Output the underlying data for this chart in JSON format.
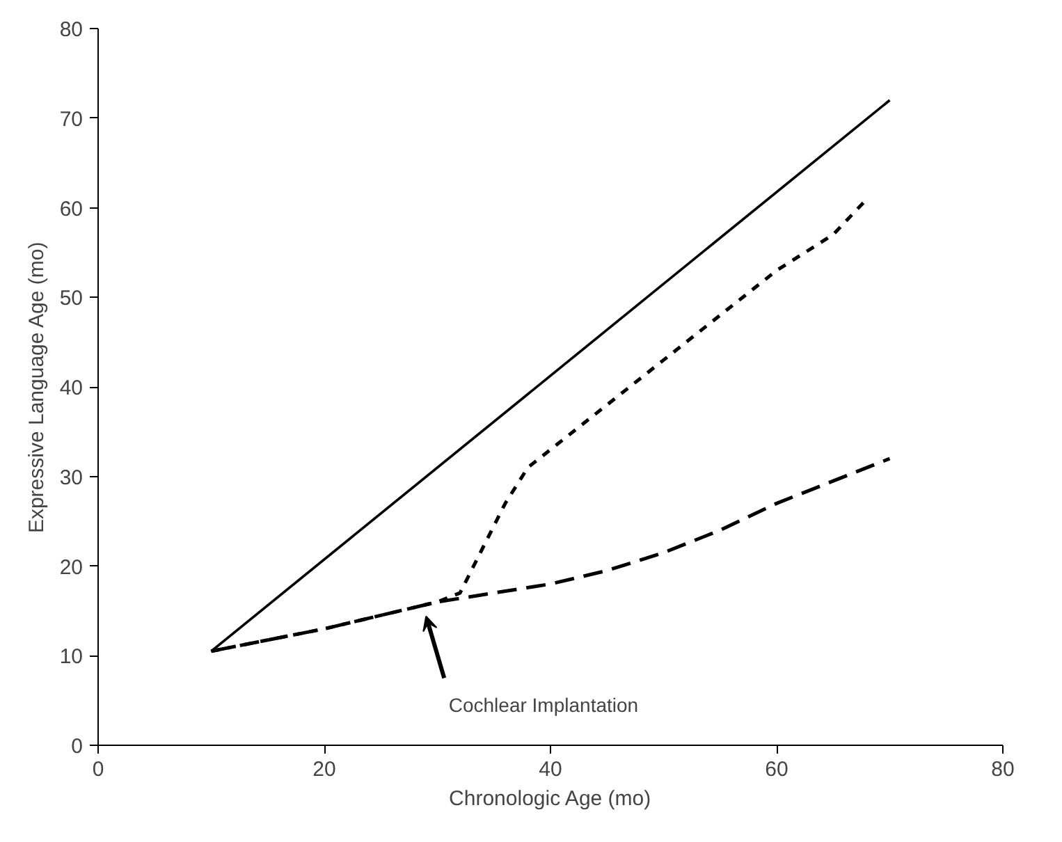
{
  "chart_data": {
    "type": "line",
    "xlabel": "Chronologic Age (mo)",
    "ylabel": "Expressive Language Age (mo)",
    "xlim": [
      0,
      80
    ],
    "ylim": [
      0,
      80
    ],
    "xticks": [
      0,
      20,
      40,
      60,
      80
    ],
    "yticks": [
      0,
      10,
      20,
      30,
      40,
      50,
      60,
      70,
      80
    ],
    "grid": false,
    "series": [
      {
        "color": "#000000",
        "line_style": "solid",
        "x": [
          10,
          70
        ],
        "values": [
          10.5,
          72
        ]
      },
      {
        "color": "#000000",
        "line_style": "dotted",
        "x": [
          10,
          20,
          30,
          32,
          34,
          36,
          38,
          40,
          45,
          50,
          55,
          60,
          65,
          68
        ],
        "values": [
          10.5,
          13,
          16,
          17,
          22,
          27,
          31,
          33,
          38,
          43,
          48,
          53,
          57,
          61
        ]
      },
      {
        "color": "#000000",
        "line_style": "dashed",
        "x": [
          10,
          20,
          30,
          40,
          45,
          50,
          55,
          60,
          65,
          70
        ],
        "values": [
          10.5,
          13,
          16,
          18,
          19.5,
          21.5,
          24,
          27,
          29.5,
          32
        ]
      }
    ],
    "annotations": [
      {
        "text": "Cochlear Implantation",
        "x": 29,
        "y": 15
      }
    ]
  }
}
